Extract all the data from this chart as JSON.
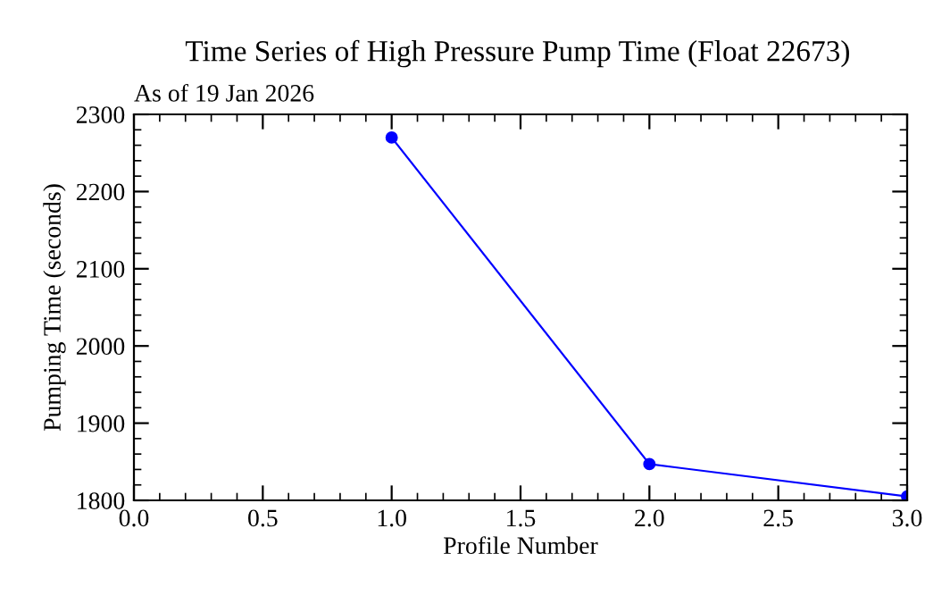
{
  "chart_data": {
    "type": "line",
    "title": "Time Series of High Pressure Pump Time (Float 22673)",
    "subtitle": "As of 19 Jan 2026",
    "xlabel": "Profile Number",
    "ylabel": "Pumping Time (seconds)",
    "x": [
      1,
      2,
      3
    ],
    "series": [
      {
        "color": "#0000ff",
        "values": [
          2270,
          1847,
          1805
        ]
      }
    ],
    "xlim": [
      0,
      3
    ],
    "xticks": [
      {
        "value": 0,
        "label": "0.0"
      },
      {
        "value": 0.5,
        "label": "0.5"
      },
      {
        "value": 1,
        "label": "1.0"
      },
      {
        "value": 1.5,
        "label": "1.5"
      },
      {
        "value": 2,
        "label": "2.0"
      },
      {
        "value": 2.5,
        "label": "2.5"
      },
      {
        "value": 3,
        "label": "3.0"
      }
    ],
    "ylim": [
      1800,
      2300
    ],
    "yticks": [
      1800,
      1900,
      2000,
      2100,
      2200,
      2300
    ],
    "marker": "circle",
    "line_style": "solid",
    "grid": false,
    "legend": false
  }
}
